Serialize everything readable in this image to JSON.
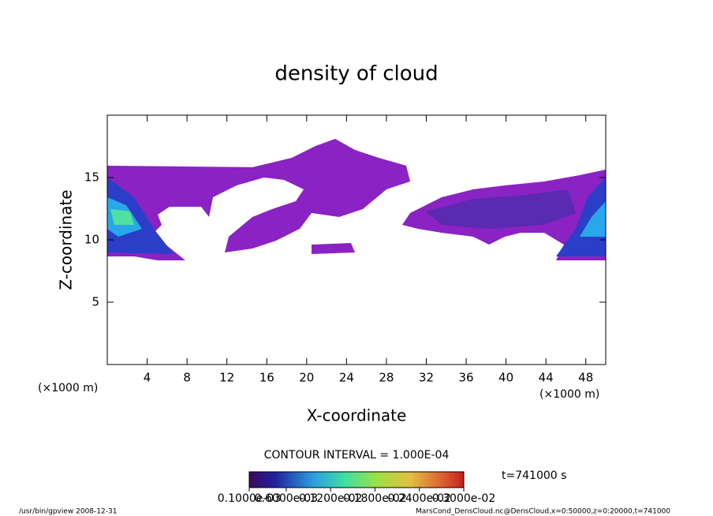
{
  "chart_data": {
    "type": "contour",
    "title": "density of cloud",
    "x_label": "X-coordinate",
    "y_label": "Z-coordinate",
    "x_unit": "(×1000 m)",
    "xlim": [
      0,
      50
    ],
    "xticks": [
      4,
      8,
      12,
      16,
      20,
      24,
      28,
      32,
      36,
      40,
      44,
      48
    ],
    "ylim": [
      0,
      20
    ],
    "yticks": [
      5,
      10,
      15
    ],
    "contour_interval": "CONTOUR INTERVAL = 1.000E-04",
    "time_label": "t=741000 s",
    "colorbar_lim": [
      0.0001,
      0.003
    ],
    "colorbar_ticks": [
      {
        "value": 0.0001,
        "label": "0.1000e-03"
      },
      {
        "value": 0.0006,
        "label": "0.6000e-03"
      },
      {
        "value": 0.0012,
        "label": "0.1200e-02"
      },
      {
        "value": 0.0018,
        "label": "0.1800e-02"
      },
      {
        "value": 0.0024,
        "label": "0.2400e-02"
      },
      {
        "value": 0.003,
        "label": "0.3000e-02"
      }
    ],
    "footer_left": "/usr/bin/gpview   2008-12-31",
    "footer_right": "MarsCond_DensCloud.nc@DensCloud,x=0:50000,z=0:20000,t=741000"
  }
}
